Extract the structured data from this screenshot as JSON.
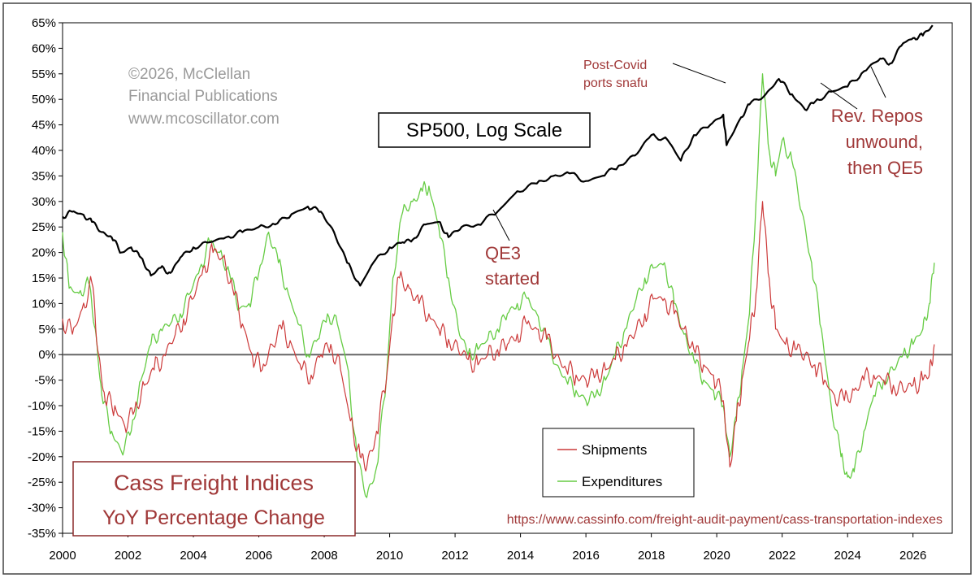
{
  "chart_data": {
    "type": "line",
    "title": "Cass Freight Indices",
    "subtitle": "YoY Percentage Change",
    "overlay_title": "SP500, Log Scale",
    "copyright": [
      "©2026, McClellan",
      "Financial Publications",
      "www.mcoscillator.com"
    ],
    "source_url": "https://www.cassinfo.com/freight-audit-payment/cass-transportation-indexes",
    "xlabel": "",
    "ylabel": "",
    "xlim": [
      2000,
      2027.2
    ],
    "ylim": [
      -35,
      65
    ],
    "x_ticks": [
      "2000",
      "2002",
      "2004",
      "2006",
      "2008",
      "2010",
      "2012",
      "2014",
      "2016",
      "2018",
      "2020",
      "2022",
      "2024",
      "2026"
    ],
    "y_ticks": [
      "65%",
      "60%",
      "55%",
      "50%",
      "45%",
      "40%",
      "35%",
      "30%",
      "25%",
      "20%",
      "15%",
      "10%",
      "5%",
      "0%",
      "-5%",
      "-10%",
      "-15%",
      "-20%",
      "-25%",
      "-30%",
      "-35%"
    ],
    "grid": false,
    "legend": {
      "position": "bottom-right",
      "entries": [
        {
          "name": "Shipments",
          "color": "#cc3a3a"
        },
        {
          "name": "Expenditures",
          "color": "#66cc44"
        }
      ]
    },
    "annotations": [
      {
        "lines": [
          "Post-Covid",
          "ports snafu"
        ],
        "points_to": [
          2021.3,
          53
        ]
      },
      {
        "lines": [
          "QE3",
          "started"
        ],
        "points_to": [
          2013.4,
          27
        ]
      },
      {
        "lines": [
          "Rev. Repos",
          "unwound,",
          "then QE5"
        ],
        "points_to": [
          2025.6,
          56
        ]
      }
    ],
    "colors": {
      "sp500": "#000000",
      "zero_line": "#666666",
      "annotation": "#a03838",
      "frame": "#8b2a2a"
    },
    "series": [
      {
        "name": "Shipments",
        "values": [
          [
            2000.0,
            7
          ],
          [
            2000.3,
            4
          ],
          [
            2000.6,
            9
          ],
          [
            2000.9,
            14
          ],
          [
            2001.1,
            0
          ],
          [
            2001.3,
            -9
          ],
          [
            2001.6,
            -10
          ],
          [
            2001.9,
            -14
          ],
          [
            2002.2,
            -11
          ],
          [
            2002.5,
            -6
          ],
          [
            2002.8,
            -3
          ],
          [
            2003.1,
            0
          ],
          [
            2003.4,
            3
          ],
          [
            2003.7,
            7
          ],
          [
            2004.0,
            11
          ],
          [
            2004.3,
            17
          ],
          [
            2004.6,
            20
          ],
          [
            2004.9,
            19
          ],
          [
            2005.2,
            13
          ],
          [
            2005.5,
            6
          ],
          [
            2005.8,
            0
          ],
          [
            2006.1,
            -3
          ],
          [
            2006.4,
            2
          ],
          [
            2006.7,
            5
          ],
          [
            2007.0,
            2
          ],
          [
            2007.3,
            -3
          ],
          [
            2007.6,
            -4
          ],
          [
            2007.9,
            0
          ],
          [
            2008.2,
            2
          ],
          [
            2008.5,
            -3
          ],
          [
            2008.8,
            -13
          ],
          [
            2009.1,
            -20
          ],
          [
            2009.3,
            -22
          ],
          [
            2009.6,
            -15
          ],
          [
            2009.9,
            -5
          ],
          [
            2010.1,
            8
          ],
          [
            2010.3,
            15
          ],
          [
            2010.6,
            13
          ],
          [
            2010.9,
            10
          ],
          [
            2011.2,
            8
          ],
          [
            2011.5,
            5
          ],
          [
            2011.8,
            3
          ],
          [
            2012.1,
            1
          ],
          [
            2012.4,
            -1
          ],
          [
            2012.7,
            -2
          ],
          [
            2013.0,
            0
          ],
          [
            2013.3,
            1
          ],
          [
            2013.6,
            2
          ],
          [
            2013.9,
            4
          ],
          [
            2014.2,
            6
          ],
          [
            2014.5,
            5
          ],
          [
            2014.8,
            3
          ],
          [
            2015.1,
            0
          ],
          [
            2015.4,
            -3
          ],
          [
            2015.7,
            -4
          ],
          [
            2016.0,
            -5
          ],
          [
            2016.3,
            -4
          ],
          [
            2016.6,
            -3
          ],
          [
            2016.9,
            -1
          ],
          [
            2017.2,
            2
          ],
          [
            2017.5,
            4
          ],
          [
            2017.8,
            8
          ],
          [
            2018.1,
            11
          ],
          [
            2018.4,
            11
          ],
          [
            2018.7,
            8
          ],
          [
            2019.0,
            5
          ],
          [
            2019.3,
            1
          ],
          [
            2019.6,
            -2
          ],
          [
            2019.9,
            -4
          ],
          [
            2020.2,
            -9
          ],
          [
            2020.4,
            -22
          ],
          [
            2020.6,
            -13
          ],
          [
            2020.8,
            -4
          ],
          [
            2021.0,
            3
          ],
          [
            2021.2,
            12
          ],
          [
            2021.4,
            30
          ],
          [
            2021.6,
            15
          ],
          [
            2021.8,
            5
          ],
          [
            2022.1,
            2
          ],
          [
            2022.4,
            1
          ],
          [
            2022.7,
            0
          ],
          [
            2023.0,
            -2
          ],
          [
            2023.3,
            -5
          ],
          [
            2023.6,
            -8
          ],
          [
            2023.9,
            -9
          ],
          [
            2024.2,
            -7
          ],
          [
            2024.5,
            -5
          ],
          [
            2024.8,
            -4
          ],
          [
            2025.1,
            -5
          ],
          [
            2025.4,
            -6
          ],
          [
            2025.7,
            -7
          ],
          [
            2026.0,
            -6
          ],
          [
            2026.3,
            -5
          ],
          [
            2026.5,
            -4
          ],
          [
            2026.65,
            2
          ]
        ]
      },
      {
        "name": "Expenditures",
        "values": [
          [
            2000.0,
            24
          ],
          [
            2000.2,
            13
          ],
          [
            2000.5,
            12
          ],
          [
            2000.8,
            14
          ],
          [
            2001.0,
            5
          ],
          [
            2001.2,
            -8
          ],
          [
            2001.5,
            -15
          ],
          [
            2001.8,
            -19
          ],
          [
            2002.1,
            -15
          ],
          [
            2002.4,
            -5
          ],
          [
            2002.7,
            2
          ],
          [
            2003.0,
            5
          ],
          [
            2003.3,
            6
          ],
          [
            2003.6,
            8
          ],
          [
            2003.9,
            12
          ],
          [
            2004.2,
            17
          ],
          [
            2004.5,
            22
          ],
          [
            2004.8,
            20
          ],
          [
            2005.1,
            16
          ],
          [
            2005.4,
            9
          ],
          [
            2005.7,
            10
          ],
          [
            2006.0,
            16
          ],
          [
            2006.3,
            24
          ],
          [
            2006.6,
            18
          ],
          [
            2006.9,
            12
          ],
          [
            2007.2,
            6
          ],
          [
            2007.5,
            0
          ],
          [
            2007.8,
            3
          ],
          [
            2008.1,
            8
          ],
          [
            2008.4,
            6
          ],
          [
            2008.7,
            -2
          ],
          [
            2009.0,
            -20
          ],
          [
            2009.3,
            -28
          ],
          [
            2009.6,
            -22
          ],
          [
            2009.9,
            -5
          ],
          [
            2010.1,
            15
          ],
          [
            2010.4,
            28
          ],
          [
            2010.7,
            30
          ],
          [
            2011.0,
            32
          ],
          [
            2011.2,
            33
          ],
          [
            2011.5,
            25
          ],
          [
            2011.8,
            15
          ],
          [
            2012.1,
            5
          ],
          [
            2012.4,
            0
          ],
          [
            2012.7,
            1
          ],
          [
            2013.0,
            3
          ],
          [
            2013.3,
            5
          ],
          [
            2013.6,
            8
          ],
          [
            2013.9,
            10
          ],
          [
            2014.2,
            11
          ],
          [
            2014.5,
            8
          ],
          [
            2014.8,
            3
          ],
          [
            2015.1,
            -2
          ],
          [
            2015.4,
            -5
          ],
          [
            2015.7,
            -7
          ],
          [
            2016.0,
            -9
          ],
          [
            2016.3,
            -8
          ],
          [
            2016.6,
            -5
          ],
          [
            2016.9,
            0
          ],
          [
            2017.2,
            5
          ],
          [
            2017.5,
            10
          ],
          [
            2017.8,
            15
          ],
          [
            2018.1,
            17
          ],
          [
            2018.4,
            18
          ],
          [
            2018.7,
            10
          ],
          [
            2019.0,
            4
          ],
          [
            2019.3,
            -1
          ],
          [
            2019.6,
            -5
          ],
          [
            2019.9,
            -7
          ],
          [
            2020.2,
            -10
          ],
          [
            2020.4,
            -20
          ],
          [
            2020.6,
            -12
          ],
          [
            2020.8,
            -2
          ],
          [
            2021.0,
            8
          ],
          [
            2021.2,
            30
          ],
          [
            2021.4,
            55
          ],
          [
            2021.6,
            40
          ],
          [
            2021.8,
            35
          ],
          [
            2022.0,
            42
          ],
          [
            2022.3,
            38
          ],
          [
            2022.6,
            28
          ],
          [
            2022.9,
            18
          ],
          [
            2023.2,
            5
          ],
          [
            2023.5,
            -10
          ],
          [
            2023.8,
            -20
          ],
          [
            2024.0,
            -24
          ],
          [
            2024.2,
            -23
          ],
          [
            2024.5,
            -15
          ],
          [
            2024.8,
            -8
          ],
          [
            2025.1,
            -5
          ],
          [
            2025.4,
            -3
          ],
          [
            2025.7,
            0
          ],
          [
            2026.0,
            2
          ],
          [
            2026.3,
            5
          ],
          [
            2026.5,
            10
          ],
          [
            2026.65,
            18
          ]
        ]
      },
      {
        "name": "SP500",
        "values": [
          [
            2000.0,
            27
          ],
          [
            2000.3,
            28
          ],
          [
            2000.6,
            27.5
          ],
          [
            2000.9,
            26
          ],
          [
            2001.2,
            24
          ],
          [
            2001.5,
            23
          ],
          [
            2001.8,
            20
          ],
          [
            2002.1,
            21
          ],
          [
            2002.4,
            19
          ],
          [
            2002.7,
            15.5
          ],
          [
            2003.0,
            17
          ],
          [
            2003.3,
            16
          ],
          [
            2003.6,
            19
          ],
          [
            2004.0,
            21
          ],
          [
            2004.5,
            22
          ],
          [
            2005.0,
            23
          ],
          [
            2005.5,
            24
          ],
          [
            2006.0,
            25
          ],
          [
            2006.5,
            25.5
          ],
          [
            2007.0,
            27.5
          ],
          [
            2007.5,
            29
          ],
          [
            2007.9,
            28
          ],
          [
            2008.3,
            24
          ],
          [
            2008.7,
            18
          ],
          [
            2009.1,
            13.5
          ],
          [
            2009.5,
            18
          ],
          [
            2010.0,
            21
          ],
          [
            2010.4,
            22
          ],
          [
            2010.7,
            22.5
          ],
          [
            2011.1,
            25.5
          ],
          [
            2011.5,
            26
          ],
          [
            2011.8,
            23
          ],
          [
            2012.2,
            25
          ],
          [
            2012.7,
            25.5
          ],
          [
            2013.3,
            28
          ],
          [
            2013.9,
            32
          ],
          [
            2014.5,
            33.5
          ],
          [
            2015.0,
            35
          ],
          [
            2015.5,
            35.5
          ],
          [
            2016.0,
            34
          ],
          [
            2016.5,
            35
          ],
          [
            2017.0,
            37
          ],
          [
            2017.5,
            39
          ],
          [
            2018.0,
            43
          ],
          [
            2018.5,
            42
          ],
          [
            2018.9,
            38
          ],
          [
            2019.3,
            43
          ],
          [
            2019.8,
            45
          ],
          [
            2020.2,
            47
          ],
          [
            2020.3,
            41
          ],
          [
            2020.7,
            46
          ],
          [
            2021.0,
            49
          ],
          [
            2021.5,
            51
          ],
          [
            2021.9,
            54
          ],
          [
            2022.3,
            51
          ],
          [
            2022.7,
            48
          ],
          [
            2023.0,
            49.5
          ],
          [
            2023.5,
            51.5
          ],
          [
            2024.0,
            52.5
          ],
          [
            2024.5,
            55.5
          ],
          [
            2025.0,
            58
          ],
          [
            2025.3,
            57
          ],
          [
            2025.7,
            61
          ],
          [
            2026.0,
            62
          ],
          [
            2026.3,
            62.5
          ],
          [
            2026.6,
            64.5
          ]
        ]
      }
    ]
  }
}
